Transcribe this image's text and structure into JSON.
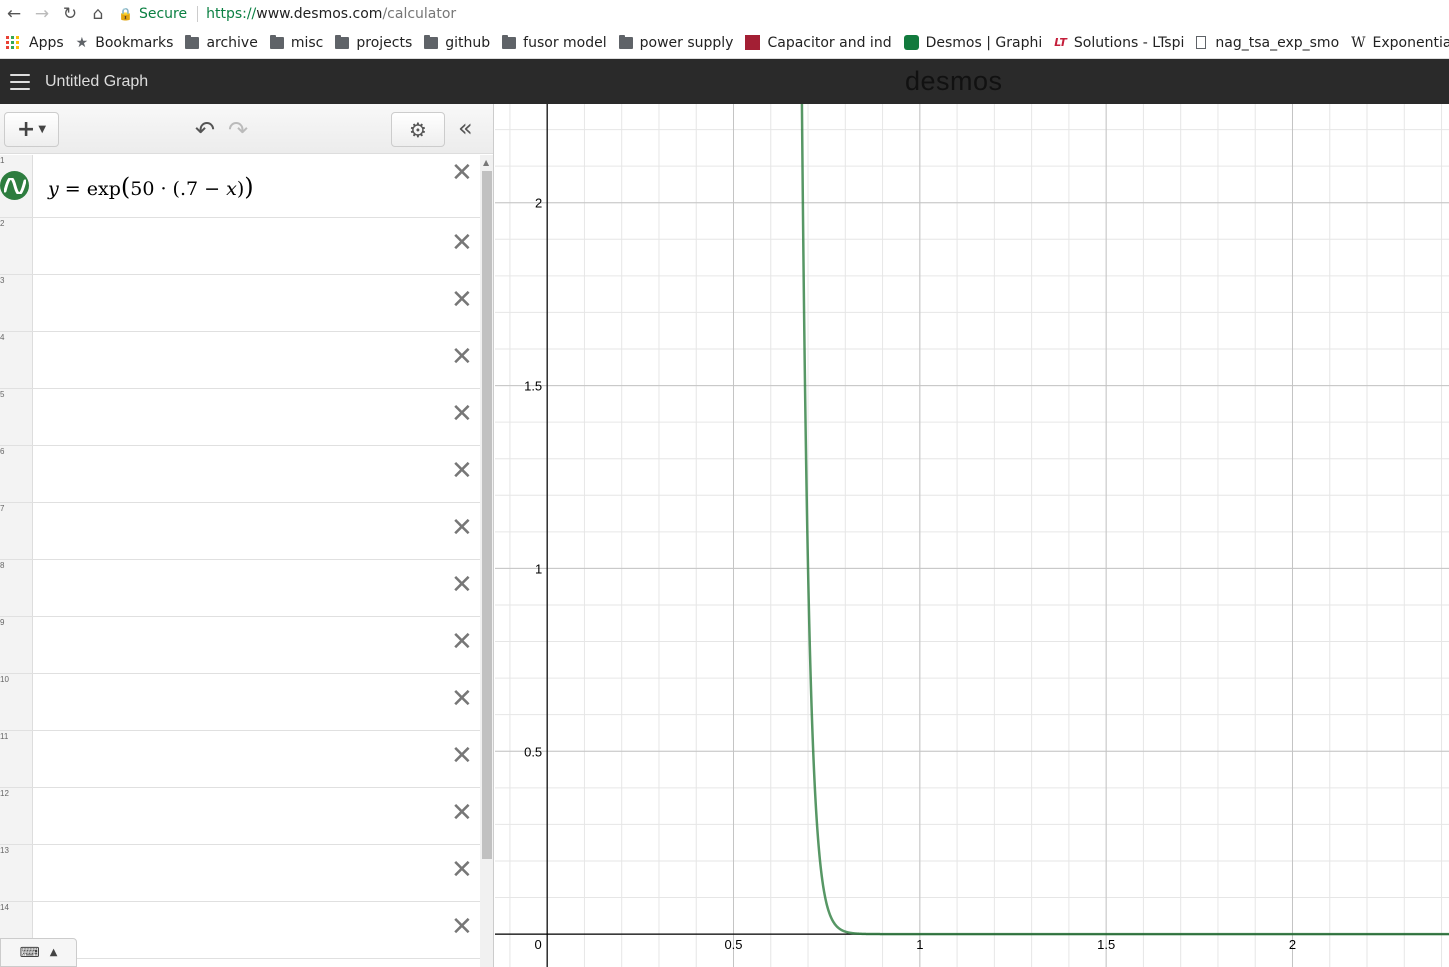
{
  "browser": {
    "secure_label": "Secure",
    "url_proto": "https://",
    "url_host": "www.desmos.com",
    "url_path": "/calculator",
    "bookmarks": [
      {
        "label": "Apps",
        "icon": "apps-grid-icon"
      },
      {
        "label": "Bookmarks",
        "icon": "star-icon"
      },
      {
        "label": "archive",
        "icon": "folder-icon"
      },
      {
        "label": "misc",
        "icon": "folder-icon"
      },
      {
        "label": "projects",
        "icon": "folder-icon"
      },
      {
        "label": "github",
        "icon": "folder-icon"
      },
      {
        "label": "fusor model",
        "icon": "folder-icon"
      },
      {
        "label": "power supply",
        "icon": "folder-icon"
      },
      {
        "label": "Capacitor and ind",
        "icon": "mit-ocw-icon"
      },
      {
        "label": "Desmos | Graphi",
        "icon": "desmos-icon"
      },
      {
        "label": "Solutions - LTspi",
        "icon": "ltspice-icon"
      },
      {
        "label": "nag_tsa_exp_smo",
        "icon": "document-icon"
      },
      {
        "label": "Exponential sm",
        "icon": "wikipedia-icon"
      }
    ]
  },
  "header": {
    "title": "Untitled Graph",
    "logo": "desmos"
  },
  "toolbar": {
    "add_label": "+",
    "undo_icon": "undo-icon",
    "redo_icon": "redo-icon",
    "settings_icon": "gear-icon",
    "collapse_icon": "collapse-left-icon"
  },
  "expressions": {
    "row_numbers": [
      "1",
      "2",
      "3",
      "4",
      "5",
      "6",
      "7",
      "8",
      "9",
      "10",
      "11",
      "12",
      "13",
      "14"
    ],
    "first": {
      "lhs": "y",
      "eq": " = ",
      "fn": "exp",
      "coef": "50",
      "dot": " · ",
      "const": ".7",
      "minus": " − ",
      "var": "x"
    },
    "color": "#2d7d3f"
  },
  "chart_data": {
    "type": "line",
    "series": [
      {
        "name": "y = exp(50·(.7 − x))",
        "color": "#2d7d3f",
        "expression": "exp(50*(0.7-x))"
      }
    ],
    "xlim": [
      -0.14,
      2.42
    ],
    "ylim": [
      -0.09,
      2.27
    ],
    "x_ticks": [
      "0",
      "0.5",
      "1",
      "1.5",
      "2"
    ],
    "y_ticks": [
      "0.5",
      "1",
      "1.5",
      "2"
    ],
    "grid": true
  }
}
